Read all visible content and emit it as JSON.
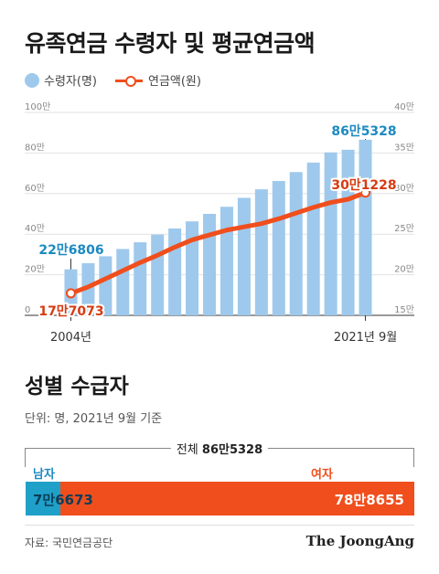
{
  "title": "유족연금 수령자 및 평균연금액",
  "legend": {
    "bar_label": "수령자(명)",
    "line_label": "연금액(원)"
  },
  "chart_data": {
    "type": "bar+line",
    "categories": [
      "2004년",
      "",
      "",
      "",
      "",
      "",
      "",
      "",
      "",
      "",
      "",
      "",
      "",
      "",
      "",
      "",
      "",
      "2021년 9월"
    ],
    "x_tick_labels": {
      "first": "2004년",
      "last": "2021년 9월"
    },
    "series": [
      {
        "name": "수령자(명)",
        "axis": "left",
        "type": "bar",
        "unit": "만",
        "values": [
          22.68,
          25.7,
          29.1,
          32.7,
          36.0,
          39.8,
          42.8,
          46.3,
          50.0,
          53.5,
          57.9,
          62.1,
          66.2,
          70.6,
          75.3,
          80.3,
          81.6,
          86.53
        ]
      },
      {
        "name": "연금액(원)",
        "axis": "right",
        "type": "line",
        "unit": "만",
        "values": [
          17.71,
          18.5,
          19.5,
          20.5,
          21.5,
          22.4,
          23.4,
          24.3,
          24.9,
          25.5,
          25.9,
          26.3,
          26.9,
          27.6,
          28.3,
          28.9,
          29.3,
          30.12
        ]
      }
    ],
    "y_left": {
      "min": 0,
      "max": 100,
      "ticks": [
        0,
        20,
        40,
        60,
        80,
        100
      ],
      "tick_labels": [
        "0",
        "20만",
        "40만",
        "60만",
        "80만",
        "100만"
      ]
    },
    "y_right": {
      "min": 15,
      "max": 40,
      "ticks": [
        15,
        20,
        25,
        30,
        35,
        40
      ],
      "tick_labels": [
        "15만",
        "20만",
        "25만",
        "30만",
        "35만",
        "40만"
      ]
    },
    "annotations": [
      {
        "text": "22만6806",
        "series": 0,
        "index": 0
      },
      {
        "text": "86만5328",
        "series": 0,
        "index": 17
      },
      {
        "text": "17만7073",
        "series": 1,
        "index": 0
      },
      {
        "text": "30만1228",
        "series": 1,
        "index": 17
      }
    ],
    "colors": {
      "bar": "#9ec9ec",
      "line": "#f04e1c",
      "bar_label": "#1c8ac0",
      "line_label": "#d63b12"
    }
  },
  "gender": {
    "title": "성별 수급자",
    "unit": "단위: 명, 2021년 9월 기준",
    "total_prefix": "전체 ",
    "total_value": "86만5328",
    "male_label": "남자",
    "female_label": "여자",
    "male_value": "7만6673",
    "female_value": "78만8655",
    "colors": {
      "male": "#1fa0c8",
      "female": "#f04e1c"
    }
  },
  "source": "자료: 국민연금공단",
  "logo": "The JoongAng"
}
